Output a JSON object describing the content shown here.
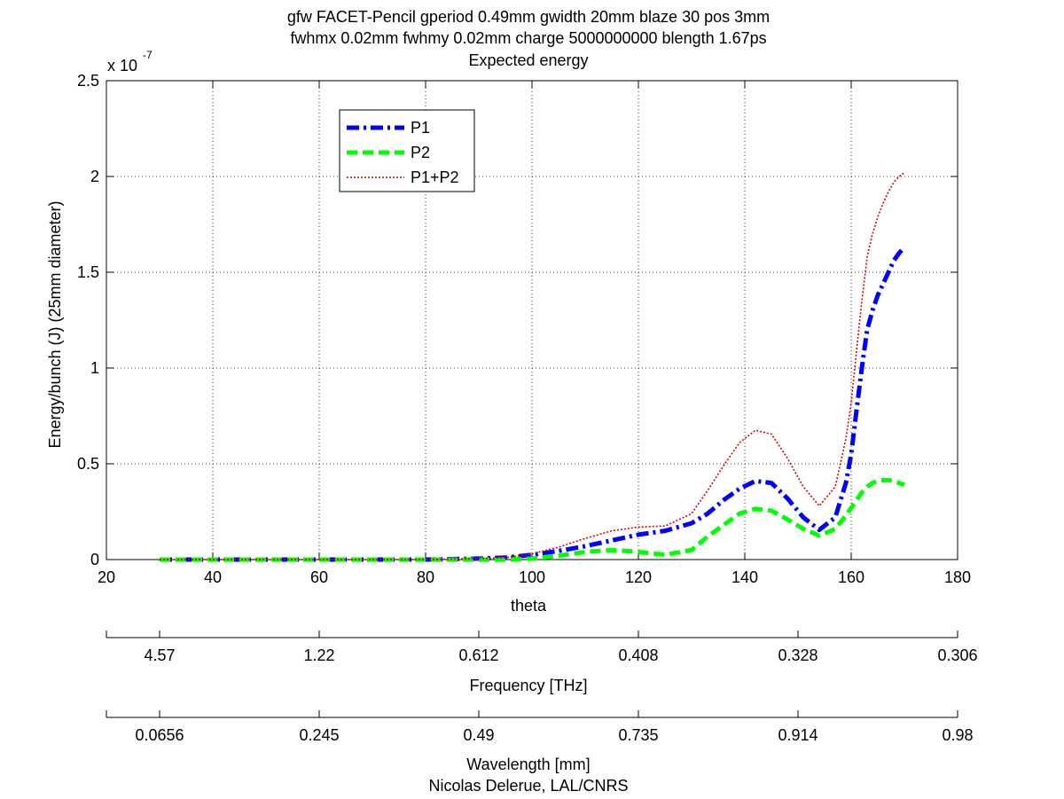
{
  "chart_data": {
    "type": "line",
    "title_lines": [
      "gfw FACET-Pencil gperiod 0.49mm gwidth 20mm blaze 30 pos 3mm",
      "fwhmx 0.02mm fwhmy 0.02mm charge 5000000000 blength 1.67ps",
      "Expected energy"
    ],
    "xlabel": "theta",
    "ylabel": "Energy/bunch (J) (25mm diameter)",
    "y_multiplier_base": "x 10",
    "y_multiplier_exp": "-7",
    "xlim": [
      20,
      180
    ],
    "ylim": [
      0,
      2.5
    ],
    "grid": true,
    "legend_position": "top-left-inside",
    "x_ticks": [
      "20",
      "40",
      "60",
      "80",
      "100",
      "120",
      "140",
      "160",
      "180"
    ],
    "y_ticks": [
      "0",
      "0.5",
      "1",
      "1.5",
      "2",
      "2.5"
    ],
    "x_tick_values": [
      20,
      40,
      60,
      80,
      100,
      120,
      140,
      160,
      180
    ],
    "y_tick_values": [
      0,
      0.5,
      1,
      1.5,
      2,
      2.5
    ],
    "x": [
      30,
      40,
      50,
      60,
      70,
      80,
      90,
      95,
      100,
      105,
      110,
      115,
      120,
      125,
      130,
      133,
      136,
      139,
      142,
      145,
      148,
      151,
      154,
      157,
      159,
      160,
      161,
      162,
      163,
      164,
      165,
      166,
      167,
      168,
      169,
      170
    ],
    "series": [
      {
        "name": "P1",
        "color": "#0000ff",
        "style": "dash-dot",
        "values": [
          0,
          0,
          0,
          0,
          0,
          0,
          0.005,
          0.01,
          0.025,
          0.045,
          0.07,
          0.1,
          0.13,
          0.15,
          0.19,
          0.24,
          0.31,
          0.37,
          0.41,
          0.4,
          0.32,
          0.22,
          0.155,
          0.22,
          0.4,
          0.55,
          0.78,
          1.0,
          1.2,
          1.3,
          1.38,
          1.44,
          1.5,
          1.56,
          1.6,
          1.63
        ]
      },
      {
        "name": "P2",
        "color": "#00ff00",
        "style": "dashed",
        "values": [
          0,
          0,
          0,
          0,
          0,
          0,
          0,
          0,
          0.005,
          0.02,
          0.04,
          0.05,
          0.04,
          0.025,
          0.05,
          0.12,
          0.18,
          0.24,
          0.265,
          0.255,
          0.21,
          0.16,
          0.125,
          0.16,
          0.23,
          0.27,
          0.31,
          0.35,
          0.38,
          0.4,
          0.41,
          0.415,
          0.415,
          0.41,
          0.4,
          0.39
        ]
      },
      {
        "name": "P1+P2",
        "color": "#e00000",
        "style": "dotted",
        "values": [
          0,
          0,
          0,
          0,
          0,
          0,
          0.005,
          0.01,
          0.03,
          0.065,
          0.11,
          0.15,
          0.17,
          0.175,
          0.24,
          0.36,
          0.49,
          0.61,
          0.675,
          0.655,
          0.53,
          0.38,
          0.28,
          0.38,
          0.63,
          0.82,
          1.09,
          1.35,
          1.58,
          1.7,
          1.79,
          1.86,
          1.92,
          1.97,
          2.0,
          2.02
        ]
      }
    ],
    "secondary_axes": [
      {
        "label": "Frequency [THz]",
        "ticks": [
          "4.57",
          "1.22",
          "0.612",
          "0.408",
          "0.328",
          "0.306"
        ],
        "tick_theta": [
          30,
          60,
          90,
          120,
          150,
          180
        ]
      },
      {
        "label": "Wavelength [mm]",
        "ticks": [
          "0.0656",
          "0.245",
          "0.49",
          "0.735",
          "0.914",
          "0.98"
        ],
        "tick_theta": [
          30,
          60,
          90,
          120,
          150,
          180
        ]
      }
    ],
    "credit": "Nicolas Delerue, LAL/CNRS"
  }
}
